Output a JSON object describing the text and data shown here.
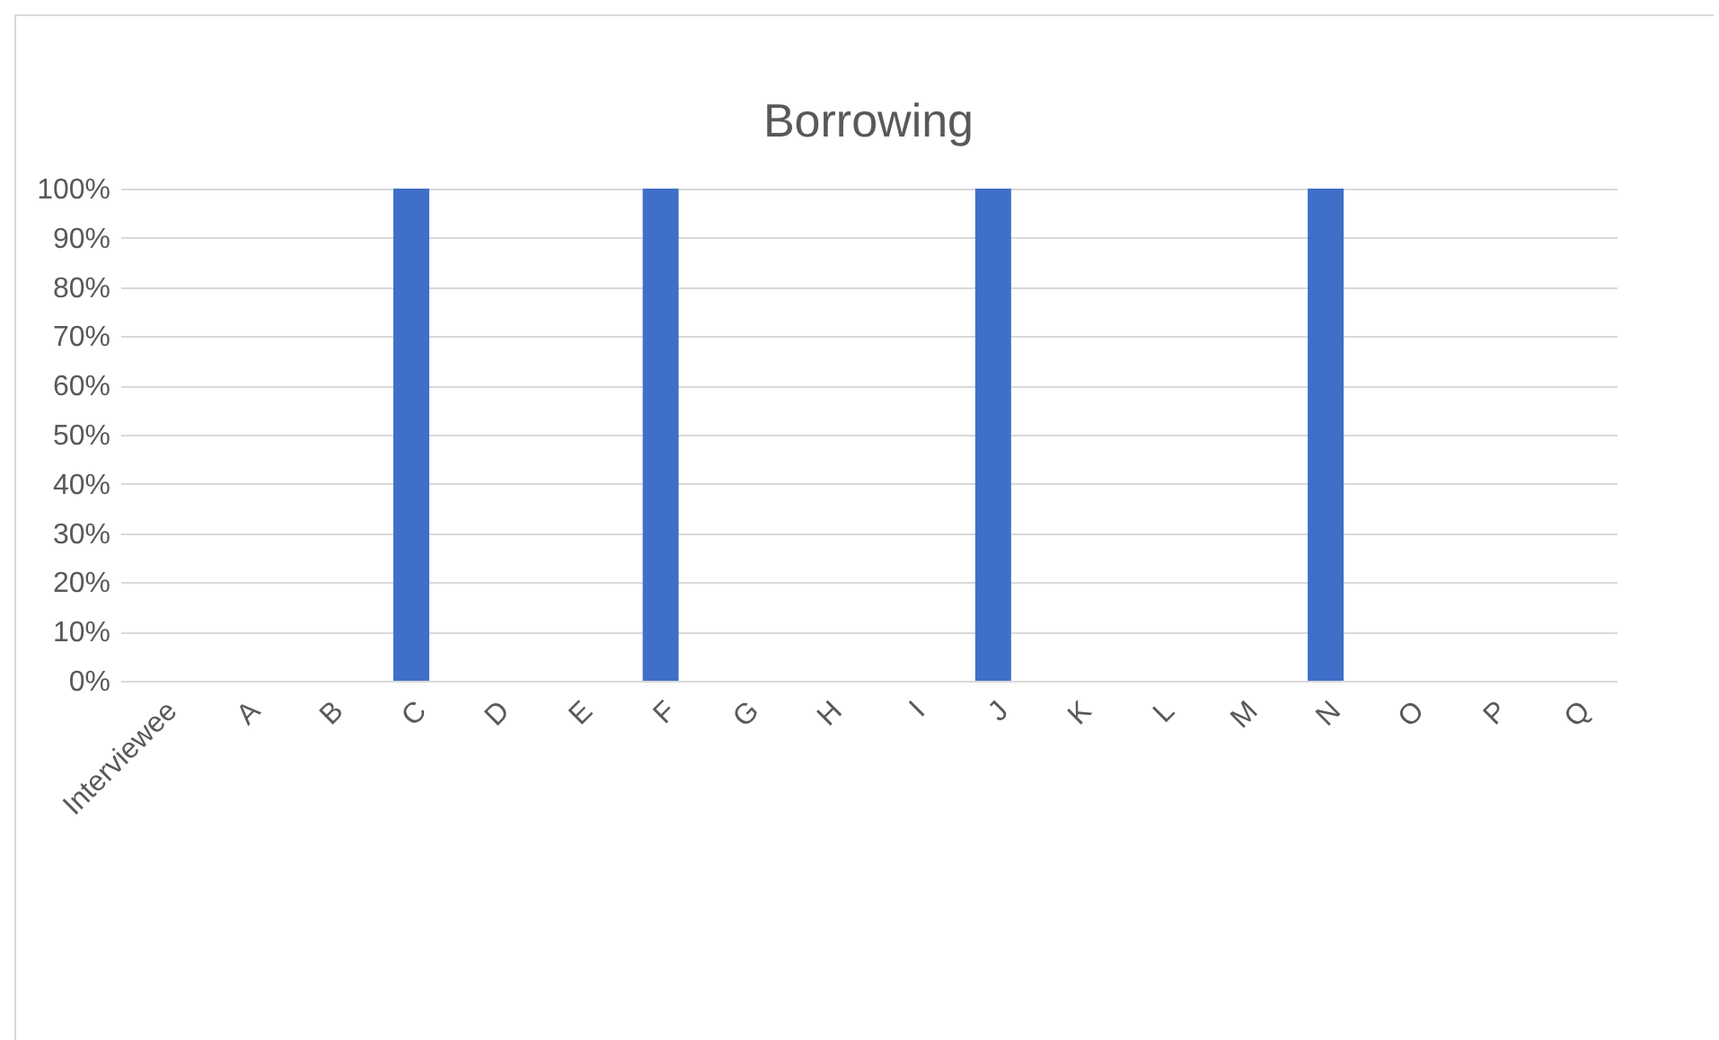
{
  "chart_data": {
    "type": "bar",
    "title": "Borrowing",
    "categories": [
      "Interviewee",
      "A",
      "B",
      "C",
      "D",
      "E",
      "F",
      "G",
      "H",
      "I",
      "J",
      "K",
      "L",
      "M",
      "N",
      "O",
      "P",
      "Q"
    ],
    "values": [
      0,
      0,
      0,
      100,
      0,
      0,
      100,
      0,
      0,
      0,
      100,
      0,
      0,
      0,
      100,
      0,
      0,
      0
    ],
    "color": "#3f6fc8",
    "ylim": [
      0,
      100
    ],
    "yticks": [
      {
        "value": 0,
        "label": "0%"
      },
      {
        "value": 10,
        "label": "10%"
      },
      {
        "value": 20,
        "label": "20%"
      },
      {
        "value": 30,
        "label": "30%"
      },
      {
        "value": 40,
        "label": "40%"
      },
      {
        "value": 50,
        "label": "50%"
      },
      {
        "value": 60,
        "label": "60%"
      },
      {
        "value": 70,
        "label": "70%"
      },
      {
        "value": 80,
        "label": "80%"
      },
      {
        "value": 90,
        "label": "90%"
      },
      {
        "value": 100,
        "label": "100%"
      }
    ],
    "grid": "y"
  }
}
